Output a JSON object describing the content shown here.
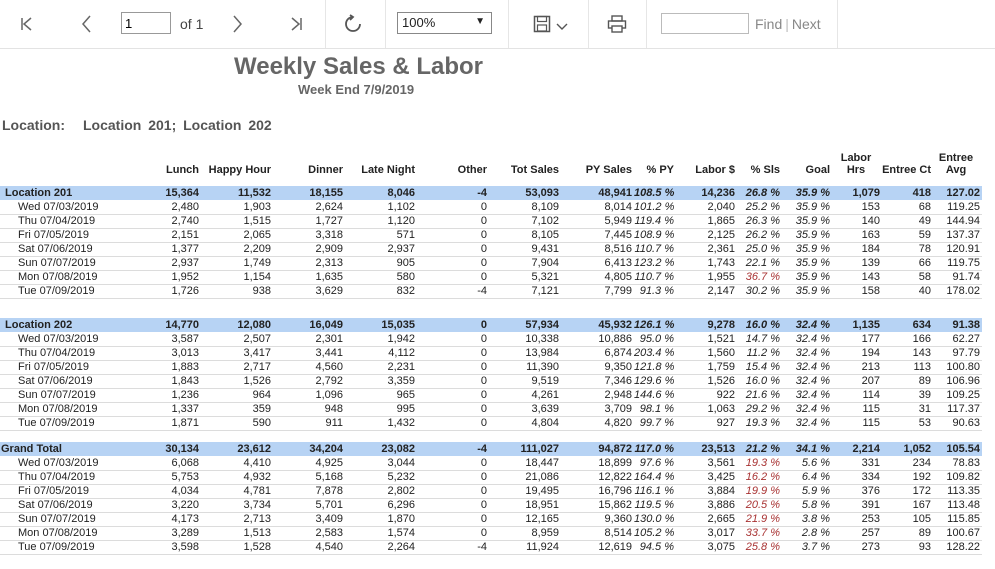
{
  "toolbar": {
    "page_value": "1",
    "page_of": "of 1",
    "zoom": "100%",
    "find_placeholder": "",
    "find_label": "Find",
    "find_sep": "|",
    "next_label": "Next",
    "icons": [
      "first-page-icon",
      "prev-page-icon",
      "next-page-icon",
      "last-page-icon",
      "refresh-icon",
      "save-icon",
      "chevron-down-icon",
      "print-icon"
    ]
  },
  "report": {
    "title": "Weekly Sales & Labor",
    "subtitle": "Week End 7/9/2019",
    "location_label": "Location:",
    "location_value": "Location  201;  Location  202"
  },
  "columns": {
    "lunch": "Lunch",
    "happy_hour": "Happy Hour",
    "dinner": "Dinner",
    "late_night": "Late Night",
    "other": "Other",
    "tot_sales": "Tot Sales",
    "py_sales": "PY Sales",
    "pct_py": "% PY",
    "labor": "Labor $",
    "pct_sls": "% Sls",
    "goal": "Goal",
    "labor_hrs_1": "Labor",
    "labor_hrs_2": "Hrs",
    "entree_ct": "Entree Ct",
    "entree_avg_1": "Entree",
    "entree_avg_2": "Avg"
  },
  "groups": [
    {
      "name": "Location 201",
      "total": [
        "15,364",
        "11,532",
        "18,155",
        "8,046",
        "-4",
        "53,093",
        "48,941",
        "108.5 %",
        "14,236",
        "26.8 %",
        "35.9 %",
        "1,079",
        "418",
        "127.02"
      ],
      "rows": [
        [
          "Wed 07/03/2019",
          "2,480",
          "1,903",
          "2,624",
          "1,102",
          "0",
          "8,109",
          "8,014",
          "101.2 %",
          "2,040",
          "25.2 %",
          "35.9 %",
          "153",
          "68",
          "119.25"
        ],
        [
          "Thu 07/04/2019",
          "2,740",
          "1,515",
          "1,727",
          "1,120",
          "0",
          "7,102",
          "5,949",
          "119.4 %",
          "1,865",
          "26.3 %",
          "35.9 %",
          "140",
          "49",
          "144.94"
        ],
        [
          "Fri 07/05/2019",
          "2,151",
          "2,065",
          "3,318",
          "571",
          "0",
          "8,105",
          "7,445",
          "108.9 %",
          "2,125",
          "26.2 %",
          "35.9 %",
          "163",
          "59",
          "137.37"
        ],
        [
          "Sat 07/06/2019",
          "1,377",
          "2,209",
          "2,909",
          "2,937",
          "0",
          "9,431",
          "8,516",
          "110.7 %",
          "2,361",
          "25.0 %",
          "35.9 %",
          "184",
          "78",
          "120.91"
        ],
        [
          "Sun 07/07/2019",
          "2,937",
          "1,749",
          "2,313",
          "905",
          "0",
          "7,904",
          "6,413",
          "123.2 %",
          "1,743",
          "22.1 %",
          "35.9 %",
          "139",
          "66",
          "119.75"
        ],
        [
          "Mon 07/08/2019",
          "1,952",
          "1,154",
          "1,635",
          "580",
          "0",
          "5,321",
          "4,805",
          "110.7 %",
          "1,955",
          "36.7 %",
          "35.9 %",
          "143",
          "58",
          "91.74"
        ],
        [
          "Tue 07/09/2019",
          "1,726",
          "938",
          "3,629",
          "832",
          "-4",
          "7,121",
          "7,799",
          "91.3 %",
          "2,147",
          "30.2 %",
          "35.9 %",
          "158",
          "40",
          "178.02"
        ]
      ]
    },
    {
      "name": "Location 202",
      "total": [
        "14,770",
        "12,080",
        "16,049",
        "15,035",
        "0",
        "57,934",
        "45,932",
        "126.1 %",
        "9,278",
        "16.0 %",
        "32.4 %",
        "1,135",
        "634",
        "91.38"
      ],
      "rows": [
        [
          "Wed 07/03/2019",
          "3,587",
          "2,507",
          "2,301",
          "1,942",
          "0",
          "10,338",
          "10,886",
          "95.0 %",
          "1,521",
          "14.7 %",
          "32.4 %",
          "177",
          "166",
          "62.27"
        ],
        [
          "Thu 07/04/2019",
          "3,013",
          "3,417",
          "3,441",
          "4,112",
          "0",
          "13,984",
          "6,874",
          "203.4 %",
          "1,560",
          "11.2 %",
          "32.4 %",
          "194",
          "143",
          "97.79"
        ],
        [
          "Fri 07/05/2019",
          "1,883",
          "2,717",
          "4,560",
          "2,231",
          "0",
          "11,390",
          "9,350",
          "121.8 %",
          "1,759",
          "15.4 %",
          "32.4 %",
          "213",
          "113",
          "100.80"
        ],
        [
          "Sat 07/06/2019",
          "1,843",
          "1,526",
          "2,792",
          "3,359",
          "0",
          "9,519",
          "7,346",
          "129.6 %",
          "1,526",
          "16.0 %",
          "32.4 %",
          "207",
          "89",
          "106.96"
        ],
        [
          "Sun 07/07/2019",
          "1,236",
          "964",
          "1,096",
          "965",
          "0",
          "4,261",
          "2,948",
          "144.6 %",
          "922",
          "21.6 %",
          "32.4 %",
          "114",
          "39",
          "109.25"
        ],
        [
          "Mon 07/08/2019",
          "1,337",
          "359",
          "948",
          "995",
          "0",
          "3,639",
          "3,709",
          "98.1 %",
          "1,063",
          "29.2 %",
          "32.4 %",
          "115",
          "31",
          "117.37"
        ],
        [
          "Tue 07/09/2019",
          "1,871",
          "590",
          "911",
          "1,432",
          "0",
          "4,804",
          "4,820",
          "99.7 %",
          "927",
          "19.3 %",
          "32.4 %",
          "115",
          "53",
          "90.63"
        ]
      ]
    },
    {
      "name": "Grand Total",
      "total": [
        "30,134",
        "23,612",
        "34,204",
        "23,082",
        "-4",
        "111,027",
        "94,872",
        "117.0 %",
        "23,513",
        "21.2 %",
        "34.1 %",
        "2,214",
        "1,052",
        "105.54"
      ],
      "rows": [
        [
          "Wed 07/03/2019",
          "6,068",
          "4,410",
          "4,925",
          "3,044",
          "0",
          "18,447",
          "18,899",
          "97.6 %",
          "3,561",
          "19.3 %",
          "5.6 %",
          "331",
          "234",
          "78.83"
        ],
        [
          "Thu 07/04/2019",
          "5,753",
          "4,932",
          "5,168",
          "5,232",
          "0",
          "21,086",
          "12,822",
          "164.4 %",
          "3,425",
          "16.2 %",
          "6.4 %",
          "334",
          "192",
          "109.82"
        ],
        [
          "Fri 07/05/2019",
          "4,034",
          "4,781",
          "7,878",
          "2,802",
          "0",
          "19,495",
          "16,796",
          "116.1 %",
          "3,884",
          "19.9 %",
          "5.9 %",
          "376",
          "172",
          "113.35"
        ],
        [
          "Sat 07/06/2019",
          "3,220",
          "3,734",
          "5,701",
          "6,296",
          "0",
          "18,951",
          "15,862",
          "119.5 %",
          "3,886",
          "20.5 %",
          "5.8 %",
          "391",
          "167",
          "113.48"
        ],
        [
          "Sun 07/07/2019",
          "4,173",
          "2,713",
          "3,409",
          "1,870",
          "0",
          "12,165",
          "9,360",
          "130.0 %",
          "2,665",
          "21.9 %",
          "3.8 %",
          "253",
          "105",
          "115.85"
        ],
        [
          "Mon 07/08/2019",
          "3,289",
          "1,513",
          "2,583",
          "1,574",
          "0",
          "8,959",
          "8,514",
          "105.2 %",
          "3,017",
          "33.7 %",
          "2.8 %",
          "257",
          "89",
          "100.67"
        ],
        [
          "Tue 07/09/2019",
          "3,598",
          "1,528",
          "4,540",
          "2,264",
          "-4",
          "11,924",
          "12,619",
          "94.5 %",
          "3,075",
          "25.8 %",
          "3.7 %",
          "273",
          "93",
          "128.22"
        ]
      ]
    }
  ],
  "colors": {
    "band": "#b7d3f4",
    "alert": "#a83232"
  }
}
